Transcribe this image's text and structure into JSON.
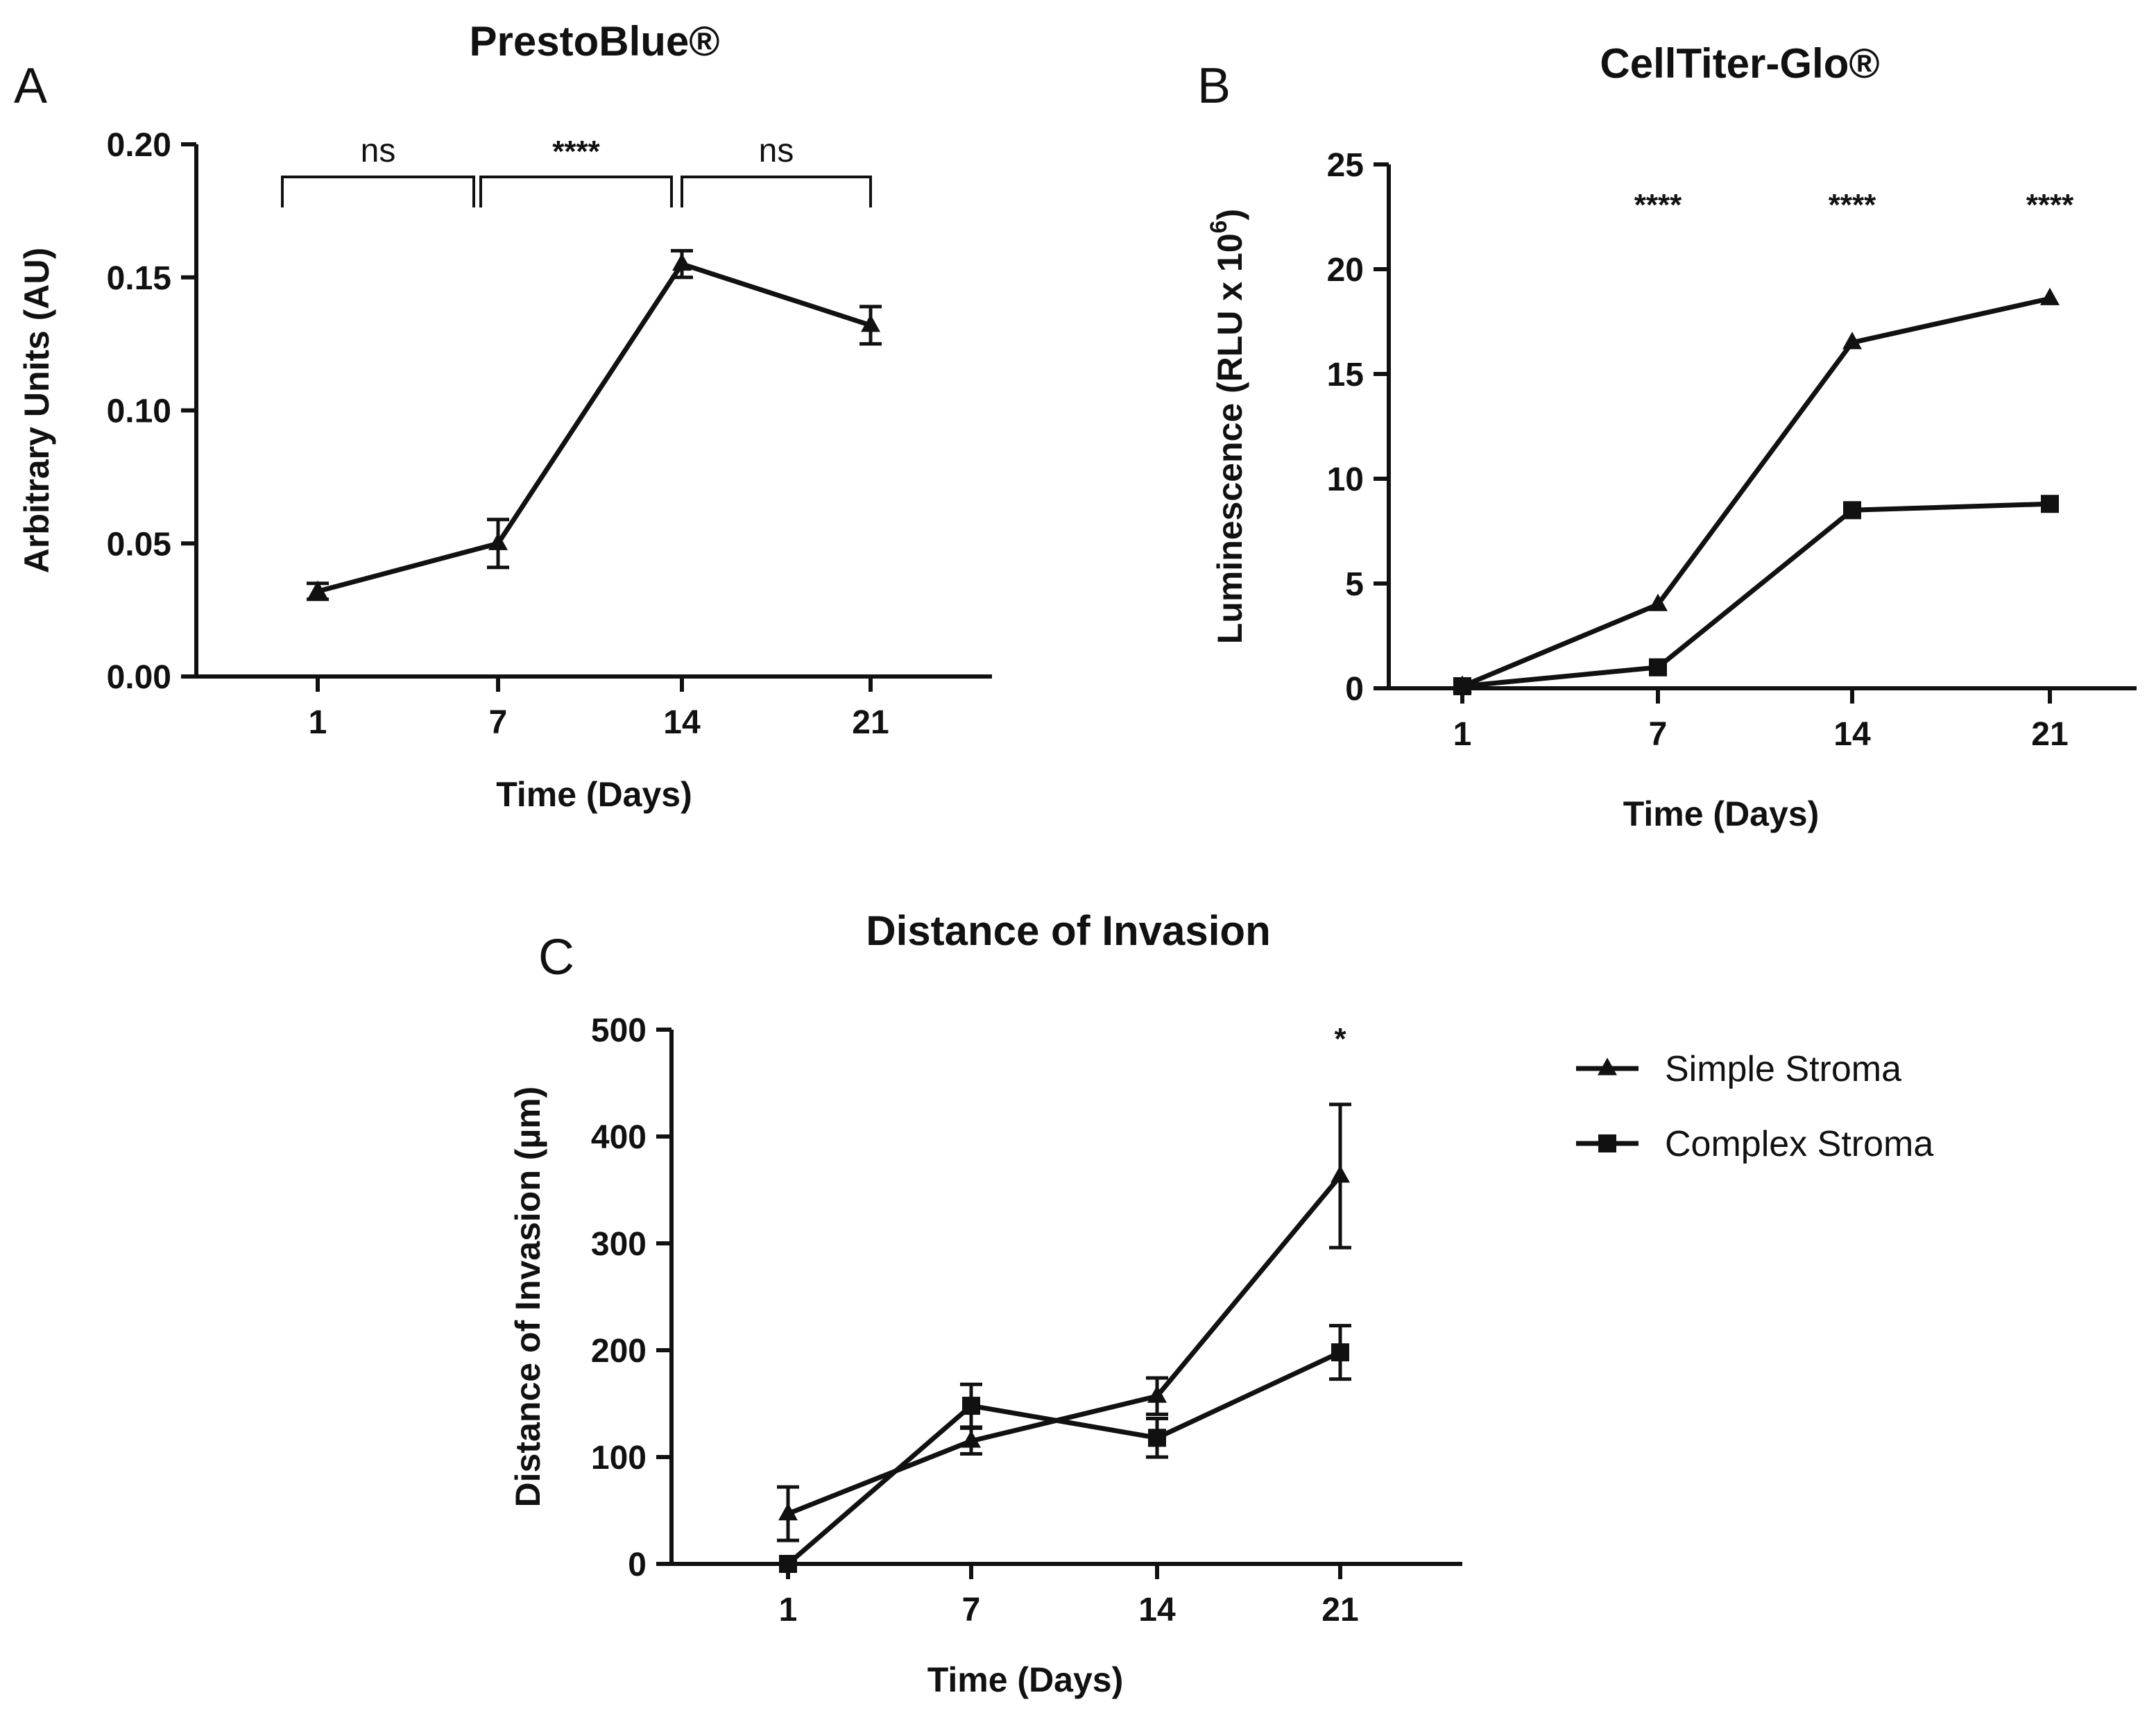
{
  "chart_data": [
    {
      "id": "A",
      "type": "line",
      "panel_label": "A",
      "title": "PrestoBlue®",
      "xlabel": "Time (Days)",
      "ylabel": "Arbitrary Units (AU)",
      "categories": [
        "1",
        "7",
        "14",
        "21"
      ],
      "yticks": [
        "0.00",
        "0.05",
        "0.10",
        "0.15",
        "0.20"
      ],
      "ylim": [
        0,
        0.2
      ],
      "series": [
        {
          "name": "PrestoBlue",
          "marker": "triangle",
          "values": [
            0.032,
            0.05,
            0.155,
            0.132
          ],
          "errors": [
            0.003,
            0.009,
            0.005,
            0.007
          ]
        }
      ],
      "brackets": [
        {
          "from": 0,
          "to": 1,
          "label": "ns"
        },
        {
          "from": 1,
          "to": 2,
          "label": "****"
        },
        {
          "from": 2,
          "to": 3,
          "label": "ns"
        }
      ]
    },
    {
      "id": "B",
      "type": "line",
      "panel_label": "B",
      "title": "CellTiter-Glo®",
      "xlabel": "Time (Days)",
      "ylabel": "Luminescence (RLU x 10",
      "ylabel_superscript": "6",
      "ylabel_close": ")",
      "categories": [
        "1",
        "7",
        "14",
        "21"
      ],
      "yticks": [
        "0",
        "5",
        "10",
        "15",
        "20",
        "25"
      ],
      "ylim": [
        0,
        25
      ],
      "series": [
        {
          "name": "Simple Stroma",
          "marker": "triangle",
          "values": [
            0.1,
            4.0,
            16.5,
            18.6
          ],
          "errors": [
            0,
            0,
            0,
            0
          ]
        },
        {
          "name": "Complex Stroma",
          "marker": "square",
          "values": [
            0.1,
            1.0,
            8.5,
            8.8
          ],
          "errors": [
            0,
            0,
            0,
            0
          ]
        }
      ],
      "annotations": [
        {
          "index": 1,
          "label": "****"
        },
        {
          "index": 2,
          "label": "****"
        },
        {
          "index": 3,
          "label": "****"
        }
      ]
    },
    {
      "id": "C",
      "type": "line",
      "panel_label": "C",
      "title": "Distance of Invasion",
      "xlabel": "Time (Days)",
      "ylabel": "Distance of Invasion (µm)",
      "categories": [
        "1",
        "7",
        "14",
        "21"
      ],
      "yticks": [
        "0",
        "100",
        "200",
        "300",
        "400",
        "500"
      ],
      "ylim": [
        0,
        500
      ],
      "series": [
        {
          "name": "Simple Stroma",
          "marker": "triangle",
          "values": [
            47,
            115,
            157,
            363
          ],
          "errors": [
            25,
            12,
            17,
            67
          ]
        },
        {
          "name": "Complex Stroma",
          "marker": "square",
          "values": [
            0,
            148,
            118,
            198
          ],
          "errors": [
            0,
            20,
            18,
            25
          ]
        }
      ],
      "annotations": [
        {
          "index": 3,
          "label": "*"
        }
      ],
      "legend": [
        "Simple Stroma",
        "Complex Stroma"
      ],
      "legend_position": "right"
    }
  ]
}
